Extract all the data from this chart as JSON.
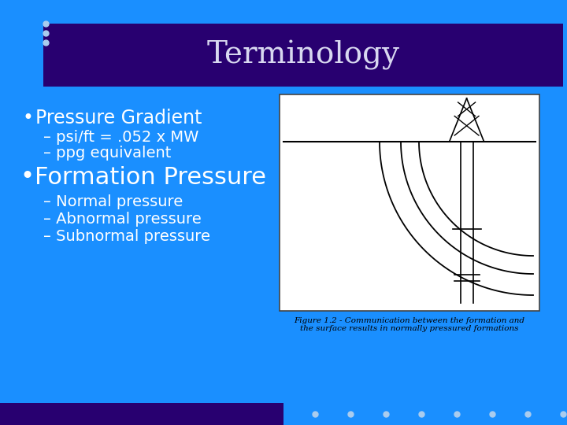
{
  "background_color": "#1A8FFF",
  "title_bar_color": "#280070",
  "title_text": "Terminology",
  "title_color": "#D8D8F0",
  "title_fontsize": 28,
  "bullet1": "Pressure Gradient",
  "sub1a": "– psi/ft = .052 x MW",
  "sub1b": "– ppg equivalent",
  "bullet2": "Formation Pressure",
  "sub2a": "– Normal pressure",
  "sub2b": "– Abnormal pressure",
  "sub2c": "– Subnormal pressure",
  "bullet_color": "#FFFFFF",
  "bullet1_fontsize": 17,
  "subbullet_fontsize": 14,
  "bullet2_fontsize": 22,
  "dots_color": "#AACCEE",
  "bottom_bar_color": "#280070",
  "fig_caption": "Figure 1.2 - Communication between the formation and\nthe surface results in normally pressured formations"
}
